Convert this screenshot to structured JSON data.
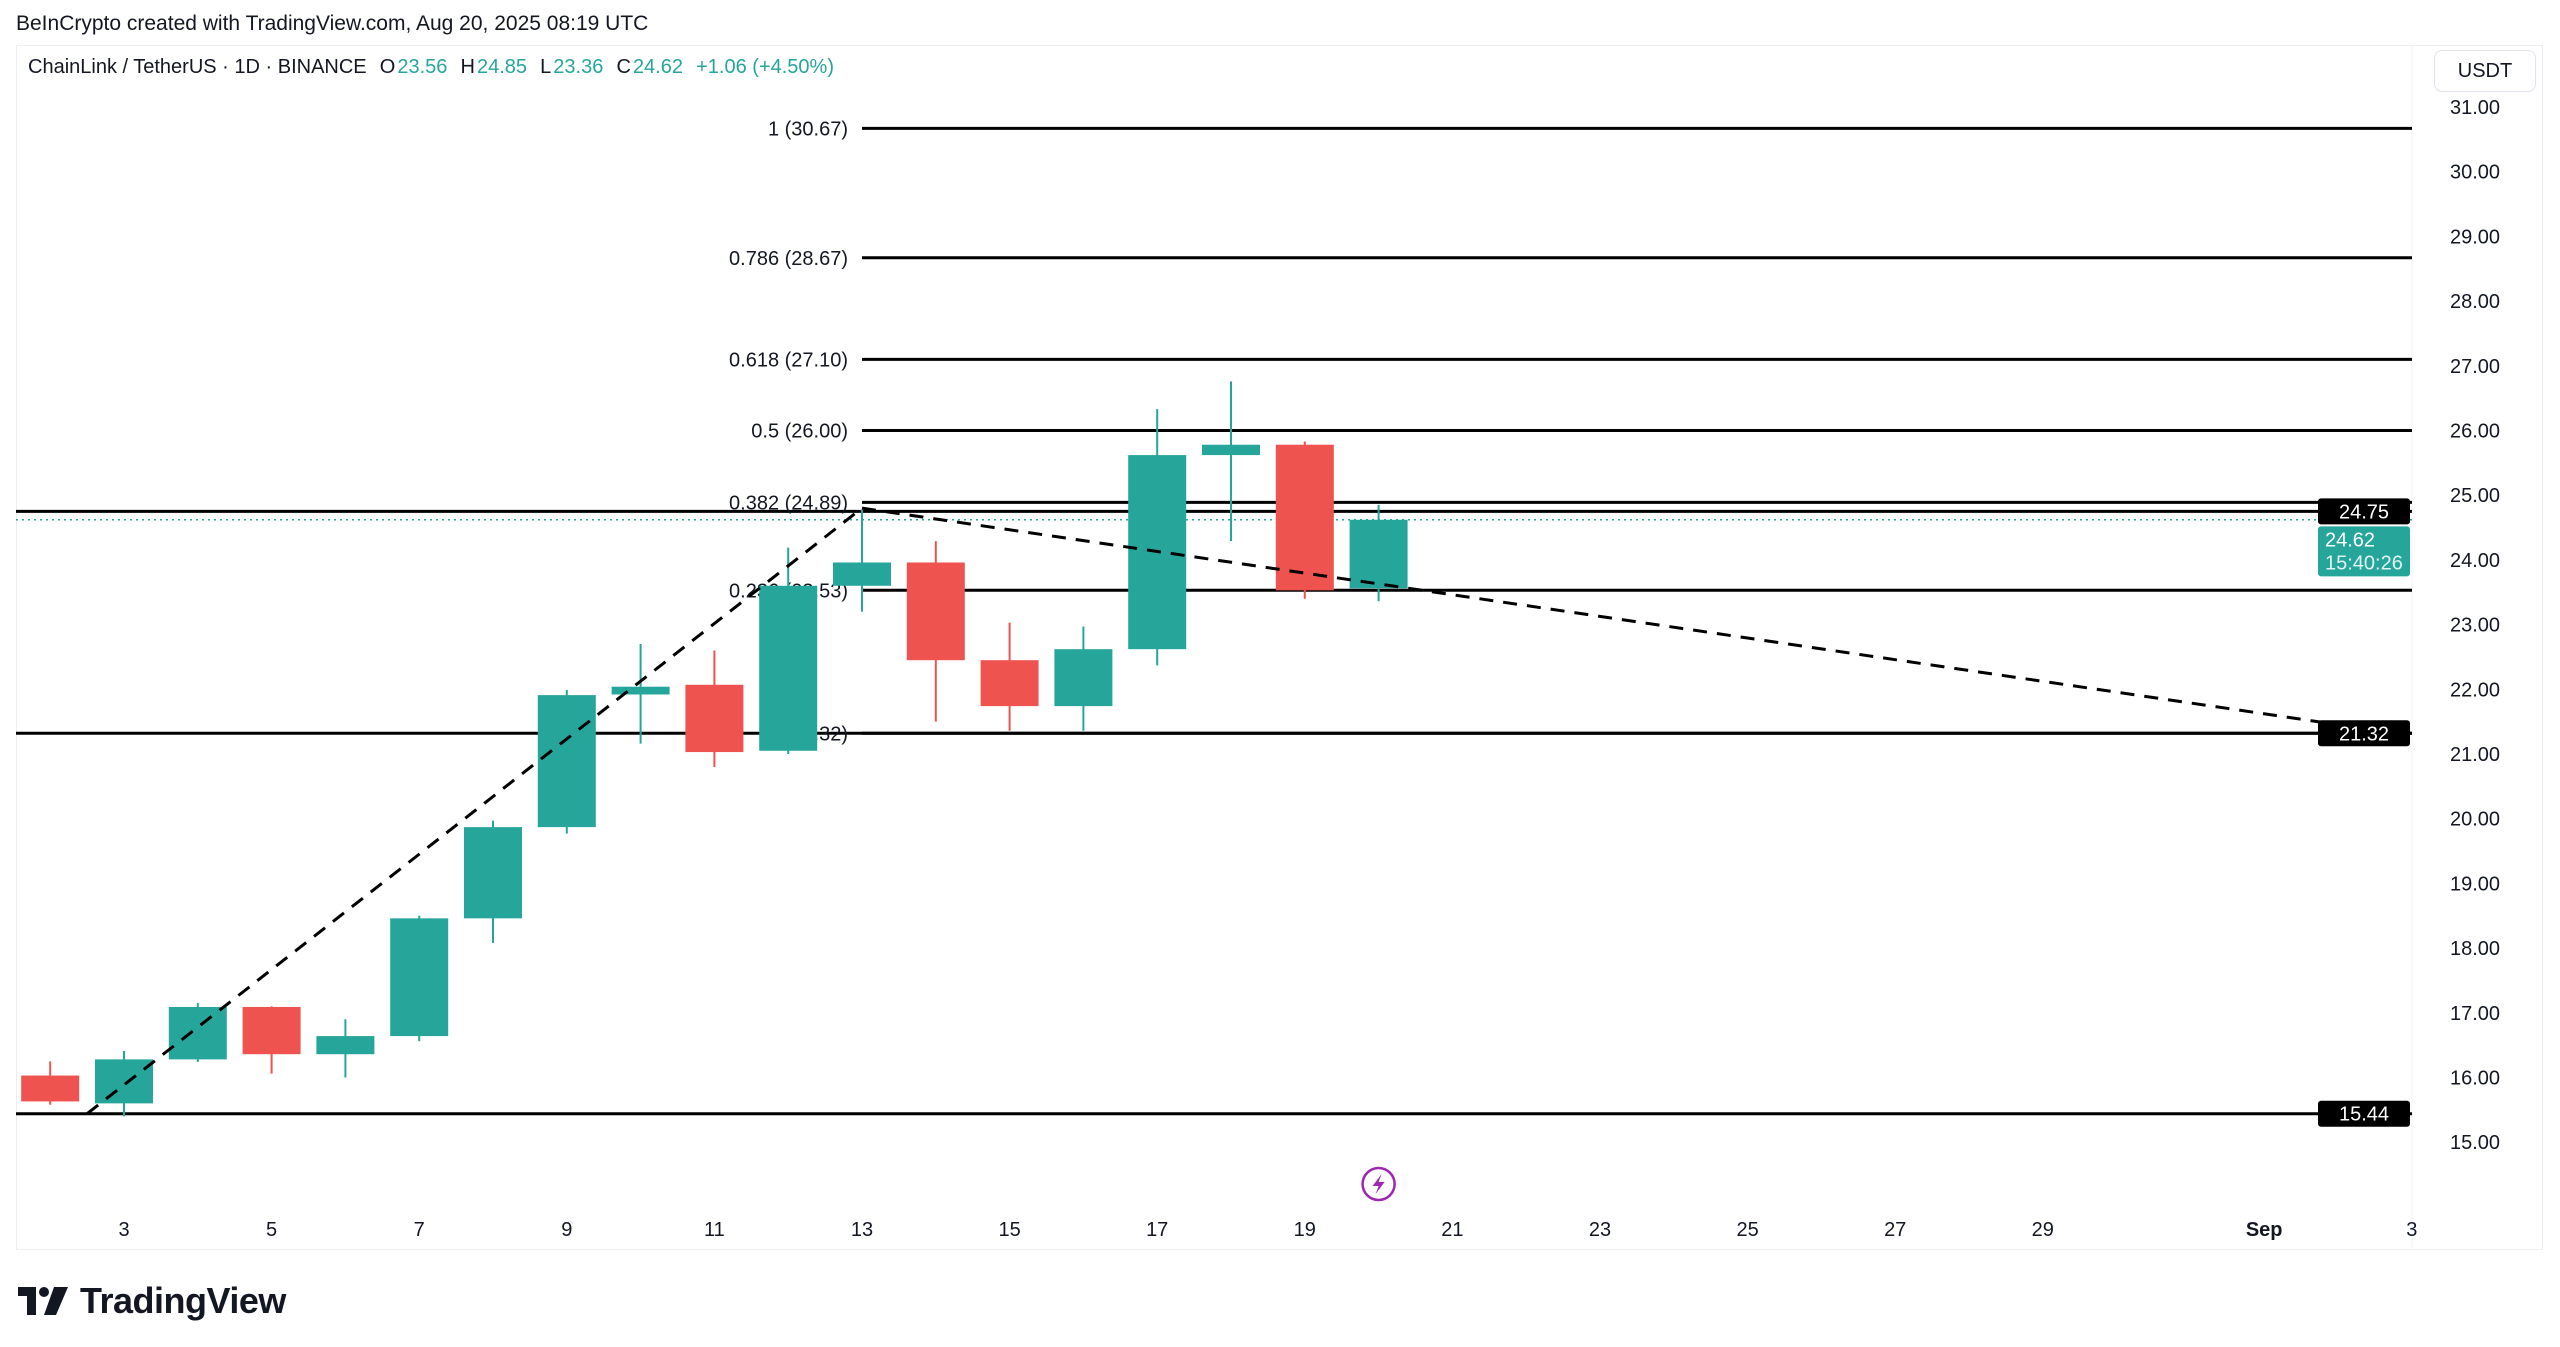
{
  "credit": "BeInCrypto created with TradingView.com, Aug 20, 2025 08:19 UTC",
  "legend": {
    "symbol": "ChainLink / TetherUS · 1D · BINANCE",
    "open_label": "O",
    "open": "23.56",
    "high_label": "H",
    "high": "24.85",
    "low_label": "L",
    "low": "23.36",
    "close_label": "C",
    "close": "24.62",
    "change": "+1.06 (+4.50%)"
  },
  "currency": "USDT",
  "logo_text": "TradingView",
  "colors": {
    "up": "#26a69a",
    "down": "#ef5350",
    "line": "#000000",
    "event": "#9c27b0"
  },
  "chart_data": {
    "type": "candlestick",
    "x_ticks": [
      "3",
      "5",
      "7",
      "9",
      "11",
      "13",
      "15",
      "17",
      "19",
      "21",
      "23",
      "25",
      "27",
      "29",
      "Sep",
      "3"
    ],
    "y_ticks": [
      "31.00",
      "30.00",
      "29.00",
      "28.00",
      "27.00",
      "26.00",
      "25.00",
      "24.00",
      "23.00",
      "22.00",
      "21.00",
      "20.00",
      "19.00",
      "18.00",
      "17.00",
      "16.00",
      "15.00"
    ],
    "ylim": [
      15,
      31
    ],
    "candles": [
      {
        "date": "Aug 2",
        "o": 16.03,
        "h": 16.25,
        "l": 15.58,
        "c": 15.63
      },
      {
        "date": "Aug 3",
        "o": 15.6,
        "h": 16.41,
        "l": 15.4,
        "c": 16.28
      },
      {
        "date": "Aug 4",
        "o": 16.28,
        "h": 17.15,
        "l": 16.24,
        "c": 17.09
      },
      {
        "date": "Aug 5",
        "o": 17.09,
        "h": 17.1,
        "l": 16.06,
        "c": 16.36
      },
      {
        "date": "Aug 6",
        "o": 16.36,
        "h": 16.9,
        "l": 16.0,
        "c": 16.64
      },
      {
        "date": "Aug 7",
        "o": 16.64,
        "h": 18.5,
        "l": 16.56,
        "c": 18.46
      },
      {
        "date": "Aug 8",
        "o": 18.46,
        "h": 19.97,
        "l": 18.08,
        "c": 19.87
      },
      {
        "date": "Aug 9",
        "o": 19.87,
        "h": 21.99,
        "l": 19.77,
        "c": 21.91
      },
      {
        "date": "Aug 10",
        "o": 21.92,
        "h": 22.7,
        "l": 21.16,
        "c": 22.04
      },
      {
        "date": "Aug 11",
        "o": 22.07,
        "h": 22.6,
        "l": 20.8,
        "c": 21.03
      },
      {
        "date": "Aug 12",
        "o": 21.05,
        "h": 24.19,
        "l": 21.0,
        "c": 23.6
      },
      {
        "date": "Aug 13",
        "o": 23.6,
        "h": 24.77,
        "l": 23.2,
        "c": 23.96
      },
      {
        "date": "Aug 14",
        "o": 23.96,
        "h": 24.29,
        "l": 21.5,
        "c": 22.45
      },
      {
        "date": "Aug 15",
        "o": 22.45,
        "h": 23.03,
        "l": 21.36,
        "c": 21.74
      },
      {
        "date": "Aug 16",
        "o": 21.74,
        "h": 22.97,
        "l": 21.36,
        "c": 22.62
      },
      {
        "date": "Aug 17",
        "o": 22.62,
        "h": 26.33,
        "l": 22.37,
        "c": 25.62
      },
      {
        "date": "Aug 18",
        "o": 25.62,
        "h": 26.76,
        "l": 24.29,
        "c": 25.78
      },
      {
        "date": "Aug 19",
        "o": 25.78,
        "h": 25.83,
        "l": 23.4,
        "c": 23.53
      },
      {
        "date": "Aug 20",
        "o": 23.56,
        "h": 24.85,
        "l": 23.36,
        "c": 24.62
      }
    ],
    "fib_levels": [
      {
        "label": "1 (30.67)",
        "price": 30.67
      },
      {
        "label": "0.786 (28.67)",
        "price": 28.67
      },
      {
        "label": "0.618 (27.10)",
        "price": 27.1
      },
      {
        "label": "0.5 (26.00)",
        "price": 26.0
      },
      {
        "label": "0.382 (24.89)",
        "price": 24.89
      },
      {
        "label": "0.236 (23.53)",
        "price": 23.53
      },
      {
        "label": "0 (21.32)",
        "price": 21.32
      }
    ],
    "horizontal_lines": [
      {
        "label": "24.75",
        "price": 24.75
      },
      {
        "label": "21.32",
        "price": 21.32
      },
      {
        "label": "15.44",
        "price": 15.44
      }
    ],
    "trend_lines": [
      {
        "from": {
          "date": "Aug 2.5",
          "price": 15.44
        },
        "to": {
          "date": "Aug 13",
          "price": 24.8
        }
      },
      {
        "from": {
          "date": "Aug 13",
          "price": 24.8
        },
        "to": {
          "date": "Sep 2.8",
          "price": 21.32
        }
      }
    ],
    "last_price": {
      "value": "24.62",
      "countdown": "15:40:26"
    }
  }
}
